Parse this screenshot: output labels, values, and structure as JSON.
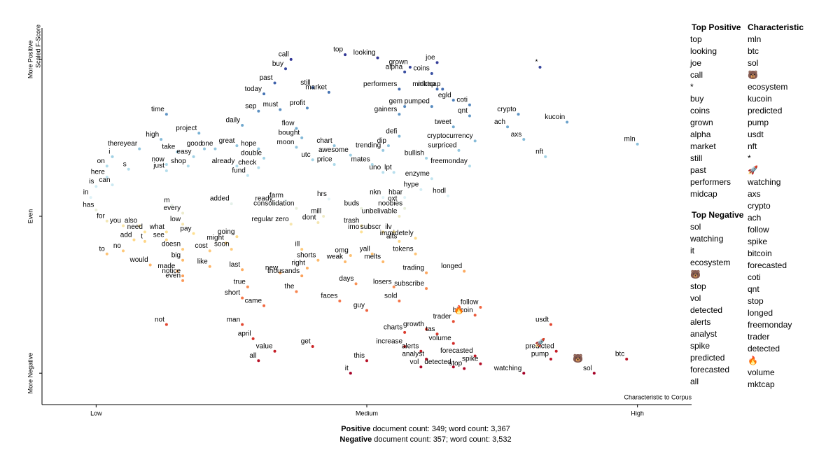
{
  "chart_data": {
    "type": "scatter",
    "y_axis_title": "Scaled F-Score",
    "x_axis_title": "Characteristic to Corpus",
    "xlim": [
      -0.1,
      1.1
    ],
    "ylim": [
      -1.2,
      1.2
    ],
    "xticks": [
      {
        "value": 0,
        "label": "Low"
      },
      {
        "value": 0.5,
        "label": "Medium"
      },
      {
        "value": 1,
        "label": "High"
      }
    ],
    "yticks": [
      {
        "value": -1,
        "label": "More Negative"
      },
      {
        "value": 0,
        "label": "Even"
      },
      {
        "value": 1,
        "label": "More Positive"
      }
    ],
    "color_scale": [
      "#a50026",
      "#d73027",
      "#f46d43",
      "#fdae61",
      "#fee090",
      "#e0f3f8",
      "#abd9e9",
      "#74add1",
      "#4575b4",
      "#313695"
    ],
    "words": {
      "labels": [
        "call",
        "top",
        "looking",
        "joe",
        "buy",
        "alpha",
        "grown",
        "coins",
        "*",
        "past",
        "still",
        "today",
        "market",
        "performers",
        "midcap",
        "mktcap",
        "egld",
        "sep",
        "must",
        "profit",
        "gem",
        "pumped",
        "gainers",
        "coti",
        "qnt",
        "time",
        "crypto",
        "ach",
        "kucoin",
        "daily",
        "flow",
        "tweet",
        "high",
        "project",
        "great",
        "bought",
        "defi",
        "chart",
        "dip",
        "cryptocurrency",
        "axs",
        "mln",
        "thereyear",
        "good",
        "one",
        "hope",
        "moon",
        "i",
        "take",
        "easy",
        "awesome",
        "trending",
        "surpriced",
        "double",
        "utc",
        "bullish",
        "nft",
        "on",
        "now",
        "shop",
        "already",
        "check",
        "price",
        "mates",
        "freemonday",
        "just",
        "s",
        "fund",
        "uno",
        "lpt",
        "here",
        "enzyme",
        "is",
        "can",
        "hype",
        "in",
        "nkn",
        "hbar",
        "hodl",
        "farm",
        "hrs",
        "m",
        "added",
        "ready",
        "oxt",
        "has",
        "every",
        "consolidation",
        "buds",
        "noobies",
        "mill",
        "unbelivable",
        "for",
        "low",
        "you",
        "also",
        "regular zero",
        "dont",
        "trash",
        "need",
        "what",
        "pay",
        "imo",
        "subscr",
        "ilv",
        "add",
        "t",
        "see",
        "going",
        "immidetely",
        "alts",
        "might",
        "to",
        "no",
        "doesn",
        "cost",
        "soon",
        "ill",
        "omg",
        "yall",
        "tokens",
        "big",
        "shorts",
        "weak",
        "melts",
        "would",
        "like",
        "right",
        "made",
        "notice",
        "new",
        "thousands",
        "trading",
        "longed",
        "last",
        "even",
        "days",
        "losers",
        "subscribe",
        "true",
        "the",
        "sold",
        "short",
        "came",
        "faces",
        "follow",
        "guy",
        "bitcoin",
        "not",
        "trader",
        "growth",
        "usdt",
        "man",
        "charts",
        "tas",
        "april",
        "volume",
        "increase",
        "get",
        "pump",
        "forecasted",
        "value",
        "predicted",
        "alerts",
        "analyst",
        "btc",
        "all",
        "this",
        "spike",
        "vol",
        "detected",
        "stop",
        "watching",
        "sol",
        "it"
      ],
      "x": [
        0.36,
        0.46,
        0.52,
        0.63,
        0.35,
        0.57,
        0.58,
        0.62,
        0.82,
        0.33,
        0.4,
        0.31,
        0.43,
        0.56,
        0.63,
        0.64,
        0.66,
        0.3,
        0.34,
        0.39,
        0.57,
        0.62,
        0.56,
        0.69,
        0.69,
        0.13,
        0.78,
        0.76,
        0.87,
        0.27,
        0.37,
        0.66,
        0.12,
        0.19,
        0.26,
        0.38,
        0.56,
        0.44,
        0.54,
        0.7,
        0.79,
        1.0,
        0.08,
        0.2,
        0.22,
        0.3,
        0.37,
        0.03,
        0.15,
        0.18,
        0.47,
        0.53,
        0.67,
        0.31,
        0.4,
        0.61,
        0.83,
        0.02,
        0.13,
        0.17,
        0.26,
        0.3,
        0.44,
        0.51,
        0.69,
        0.13,
        0.06,
        0.28,
        0.53,
        0.55,
        0.02,
        0.62,
        0.0,
        0.03,
        0.6,
        -0.01,
        0.53,
        0.57,
        0.65,
        0.35,
        0.43,
        0.14,
        0.25,
        0.33,
        0.56,
        0.0,
        0.16,
        0.37,
        0.49,
        0.57,
        0.42,
        0.56,
        0.02,
        0.16,
        0.05,
        0.08,
        0.36,
        0.41,
        0.49,
        0.09,
        0.13,
        0.18,
        0.49,
        0.53,
        0.55,
        0.07,
        0.09,
        0.13,
        0.26,
        0.59,
        0.56,
        0.24,
        0.02,
        0.05,
        0.16,
        0.21,
        0.25,
        0.38,
        0.47,
        0.51,
        0.59,
        0.16,
        0.41,
        0.46,
        0.53,
        0.1,
        0.21,
        0.39,
        0.15,
        0.16,
        0.34,
        0.38,
        0.61,
        0.68,
        0.27,
        0.16,
        0.48,
        0.55,
        0.61,
        0.28,
        0.37,
        0.56,
        0.27,
        0.31,
        0.45,
        0.71,
        0.5,
        0.7,
        0.13,
        0.66,
        0.61,
        0.84,
        0.27,
        0.57,
        0.63,
        0.29,
        0.66,
        0.57,
        0.4,
        0.84,
        0.7,
        0.33,
        0.85,
        0.6,
        0.61,
        0.98,
        0.3,
        0.5,
        0.71,
        0.6,
        0.66,
        0.68,
        0.79,
        0.92,
        0.47
      ],
      "y": [
        1.0,
        1.03,
        1.01,
        0.98,
        0.94,
        0.92,
        0.95,
        0.91,
        0.95,
        0.85,
        0.82,
        0.78,
        0.79,
        0.81,
        0.81,
        0.81,
        0.74,
        0.67,
        0.68,
        0.69,
        0.7,
        0.7,
        0.65,
        0.71,
        0.64,
        0.65,
        0.65,
        0.57,
        0.6,
        0.58,
        0.56,
        0.57,
        0.49,
        0.53,
        0.45,
        0.5,
        0.51,
        0.45,
        0.45,
        0.48,
        0.49,
        0.46,
        0.43,
        0.43,
        0.43,
        0.43,
        0.44,
        0.38,
        0.41,
        0.38,
        0.39,
        0.42,
        0.42,
        0.37,
        0.36,
        0.37,
        0.38,
        0.32,
        0.33,
        0.32,
        0.32,
        0.31,
        0.33,
        0.33,
        0.32,
        0.29,
        0.3,
        0.26,
        0.28,
        0.28,
        0.25,
        0.24,
        0.19,
        0.2,
        0.17,
        0.12,
        0.12,
        0.12,
        0.13,
        0.1,
        0.11,
        0.07,
        0.08,
        0.08,
        0.08,
        0.04,
        0.02,
        0.05,
        0.05,
        0.05,
        0.0,
        0.0,
        -0.03,
        -0.05,
        -0.06,
        -0.06,
        -0.05,
        -0.04,
        -0.06,
        -0.1,
        -0.1,
        -0.11,
        -0.1,
        -0.1,
        -0.1,
        -0.15,
        -0.16,
        -0.15,
        -0.13,
        -0.14,
        -0.16,
        -0.17,
        -0.24,
        -0.22,
        -0.21,
        -0.22,
        -0.21,
        -0.21,
        -0.25,
        -0.24,
        -0.24,
        -0.28,
        -0.28,
        -0.29,
        -0.29,
        -0.31,
        -0.32,
        -0.33,
        -0.35,
        -0.38,
        -0.36,
        -0.38,
        -0.36,
        -0.35,
        -0.34,
        -0.41,
        -0.43,
        -0.45,
        -0.46,
        -0.45,
        -0.48,
        -0.54,
        -0.52,
        -0.57,
        -0.54,
        -0.58,
        -0.6,
        -0.63,
        -0.69,
        -0.67,
        -0.72,
        -0.69,
        -0.69,
        -0.74,
        -0.75,
        -0.78,
        -0.81,
        -0.83,
        -0.83,
        -0.91,
        -0.89,
        -0.86,
        -0.86,
        -0.86,
        -0.91,
        -0.91,
        -0.92,
        -0.92,
        -0.94,
        -0.96,
        -0.96,
        -0.97,
        -1.0,
        -1.0,
        -1.0
      ]
    },
    "icons": {
      "labels": [
        "🐻",
        "🔥",
        "🚀"
      ],
      "x": [
        0.89,
        0.67,
        0.82
      ],
      "y": [
        -0.91,
        -0.6,
        -0.81
      ]
    }
  },
  "lists": {
    "top_positive": {
      "title": "Top Positive",
      "items": [
        "top",
        "looking",
        "joe",
        "call",
        "*",
        "buy",
        "coins",
        "grown",
        "alpha",
        "market",
        "still",
        "past",
        "performers",
        "midcap"
      ]
    },
    "top_negative": {
      "title": "Top Negative",
      "items": [
        "sol",
        "watching",
        "it",
        "ecosystem",
        "🐻",
        "stop",
        "vol",
        "detected",
        "alerts",
        "analyst",
        "spike",
        "predicted",
        "forecasted",
        "all"
      ]
    },
    "characteristic": {
      "title": "Characteristic",
      "items": [
        "mln",
        "btc",
        "sol",
        "🐻",
        "ecosystem",
        "kucoin",
        "predicted",
        "pump",
        "usdt",
        "nft",
        "*",
        "🚀",
        "watching",
        "axs",
        "crypto",
        "ach",
        "follow",
        "spike",
        "bitcoin",
        "forecasted",
        "coti",
        "qnt",
        "stop",
        "longed",
        "freemonday",
        "trader",
        "detected",
        "🔥",
        "volume",
        "mktcap"
      ]
    }
  },
  "counts": [
    {
      "label": "Positive",
      "text": "document count: 349; word count: 3,367"
    },
    {
      "label": "Negative",
      "text": "document count: 357; word count: 3,532"
    }
  ]
}
